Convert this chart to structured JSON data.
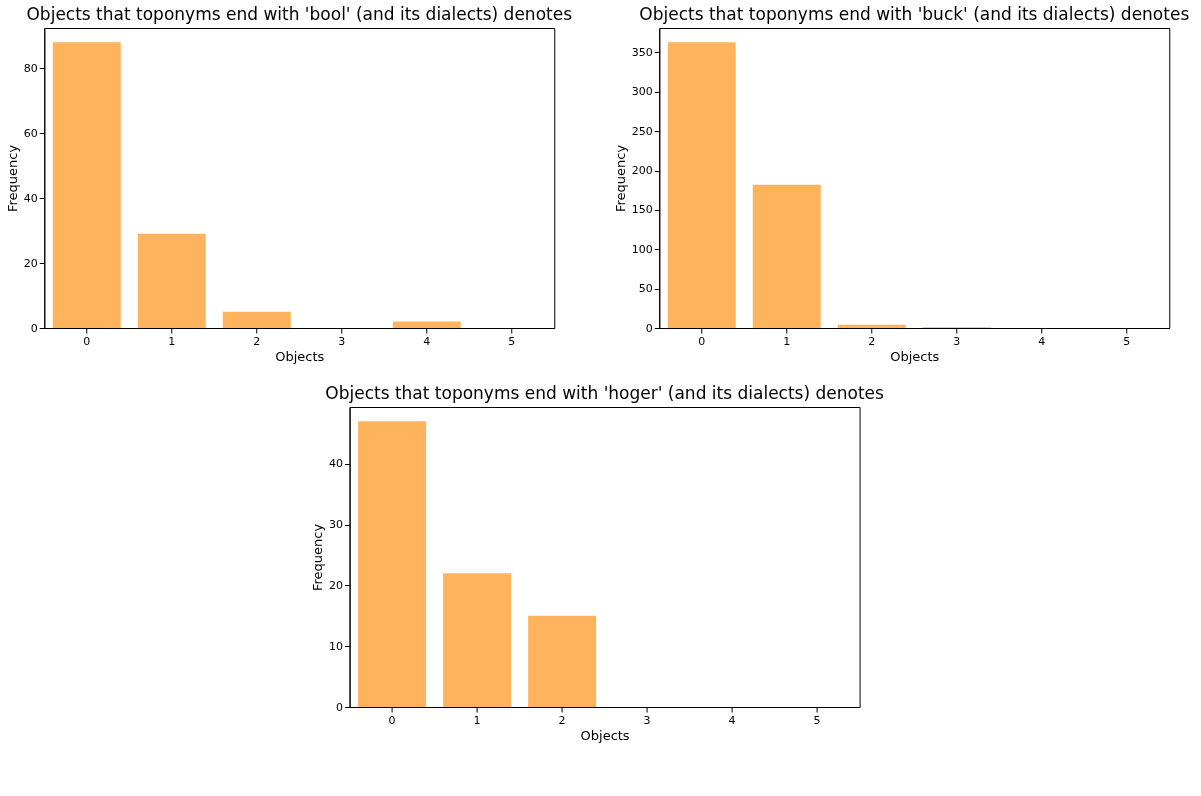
{
  "chart_data": [
    {
      "type": "bar",
      "title": "Objects that toponyms end with 'bool' (and its dialects) denotes",
      "xlabel": "Objects",
      "ylabel": "Frequency",
      "categories": [
        "0",
        "1",
        "2",
        "3",
        "4",
        "5"
      ],
      "values": [
        88,
        29,
        5,
        0,
        2,
        0
      ],
      "color": "#ffb35c",
      "ylim": [
        0,
        92.4
      ],
      "yticks": [
        0,
        20,
        40,
        60,
        80
      ],
      "grid": false
    },
    {
      "type": "bar",
      "title": "Objects that toponyms end with 'buck' (and its dialects) denotes",
      "xlabel": "Objects",
      "ylabel": "Frequency",
      "categories": [
        "0",
        "1",
        "2",
        "3",
        "4",
        "5"
      ],
      "values": [
        363,
        182,
        4,
        1,
        0,
        0
      ],
      "color": "#ffb35c",
      "ylim": [
        0,
        381
      ],
      "yticks": [
        0,
        50,
        100,
        150,
        200,
        250,
        300,
        350
      ],
      "grid": false
    },
    {
      "type": "bar",
      "title": "Objects that toponyms end with 'hoger' (and its dialects) denotes",
      "xlabel": "Objects",
      "ylabel": "Frequency",
      "categories": [
        "0",
        "1",
        "2",
        "3",
        "4",
        "5"
      ],
      "values": [
        47,
        22,
        15,
        0,
        0,
        0
      ],
      "color": "#ffb35c",
      "ylim": [
        0,
        49.35
      ],
      "yticks": [
        0,
        10,
        20,
        30,
        40
      ],
      "grid": false
    }
  ]
}
